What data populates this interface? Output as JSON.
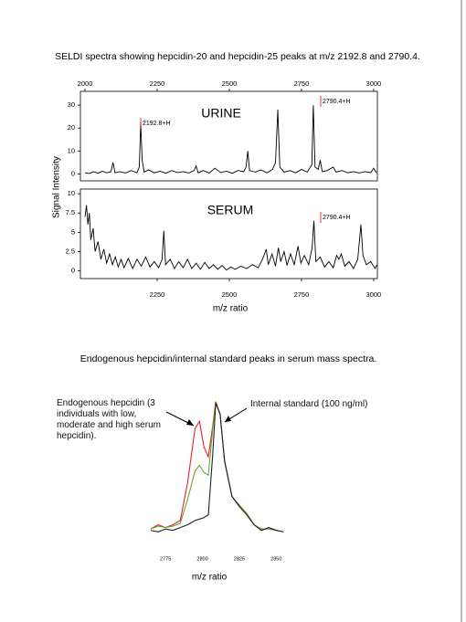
{
  "chart_data": [
    {
      "type": "line",
      "title": "SELDI spectra showing hepcidin-20 and hepcidin-25 peaks at m/z 2192.8 and 2790.4.",
      "ylabel": "Signal Intensity",
      "x": [
        2000,
        2015,
        2030,
        2045,
        2060,
        2075,
        2090,
        2097,
        2104,
        2120,
        2140,
        2160,
        2180,
        2188,
        2193,
        2198,
        2205,
        2220,
        2240,
        2260,
        2280,
        2300,
        2320,
        2340,
        2360,
        2378,
        2385,
        2392,
        2410,
        2430,
        2450,
        2470,
        2490,
        2510,
        2530,
        2550,
        2558,
        2564,
        2570,
        2590,
        2610,
        2630,
        2650,
        2660,
        2668,
        2675,
        2690,
        2710,
        2730,
        2750,
        2770,
        2786,
        2791,
        2797,
        2808,
        2815,
        2822,
        2840,
        2860,
        2870,
        2890,
        2910,
        2930,
        2950,
        2970,
        2990,
        3000,
        3010
      ],
      "series": [
        {
          "color": "#000000",
          "values": [
            0.5,
            0.2,
            1,
            0.3,
            1.2,
            0.5,
            1,
            5,
            0.5,
            1,
            0.4,
            1.5,
            0.5,
            3,
            22,
            6,
            0.8,
            1.8,
            0.5,
            1.2,
            0.3,
            1.5,
            0.6,
            1.0,
            0.4,
            1.5,
            3.5,
            0.5,
            1.5,
            0.4,
            2.5,
            0.6,
            1.2,
            0.3,
            1.5,
            1,
            3,
            10,
            1.5,
            0.8,
            1.8,
            0.5,
            2,
            5,
            28,
            3,
            0.8,
            1.5,
            0.5,
            2,
            0.8,
            4,
            30,
            3,
            2,
            6,
            1,
            1.5,
            3,
            0.8,
            1.5,
            0.5,
            1,
            0.4,
            1,
            0.6,
            2.5,
            0.5
          ]
        }
      ],
      "xlim": [
        1984,
        3013
      ],
      "xticks": [
        2000,
        2250,
        2500,
        2750,
        3000
      ],
      "ylim": [
        -3,
        36
      ],
      "yticks": [
        0,
        10,
        20,
        30
      ],
      "annotations": [
        {
          "text": "URINE"
        },
        {
          "text": "2192.8+H",
          "color": "#e00000"
        },
        {
          "text": "2790.4+H",
          "color": "#e00000"
        }
      ]
    },
    {
      "type": "line",
      "xlabel": "m/z ratio",
      "x": [
        2000,
        2005,
        2010,
        2015,
        2020,
        2028,
        2035,
        2045,
        2055,
        2065,
        2075,
        2085,
        2095,
        2105,
        2115,
        2125,
        2135,
        2150,
        2165,
        2180,
        2195,
        2210,
        2225,
        2240,
        2255,
        2267,
        2273,
        2279,
        2295,
        2310,
        2325,
        2340,
        2355,
        2370,
        2385,
        2400,
        2415,
        2430,
        2445,
        2460,
        2475,
        2490,
        2505,
        2520,
        2540,
        2560,
        2580,
        2600,
        2615,
        2628,
        2635,
        2648,
        2660,
        2670,
        2678,
        2690,
        2700,
        2712,
        2725,
        2738,
        2748,
        2760,
        2775,
        2787,
        2793,
        2800,
        2815,
        2830,
        2845,
        2860,
        2872,
        2880,
        2888,
        2900,
        2915,
        2930,
        2945,
        2956,
        2963,
        2975,
        2990,
        3005,
        3012
      ],
      "series": [
        {
          "color": "#000000",
          "values": [
            7,
            8.5,
            6,
            7.5,
            4,
            5.5,
            2.5,
            3.8,
            1.5,
            2.8,
            1,
            2.2,
            0.8,
            1.8,
            0.5,
            1.5,
            0.4,
            1.6,
            0.3,
            1.5,
            0.6,
            1.8,
            0.5,
            1.2,
            0.4,
            1.5,
            5.2,
            0.8,
            1.5,
            0.3,
            1.2,
            0.4,
            1.5,
            0.3,
            1.0,
            0.2,
            1.1,
            0.3,
            0.8,
            0.2,
            0.7,
            0.1,
            0.5,
            0.2,
            0.6,
            0.3,
            0.8,
            0.4,
            1.5,
            2.8,
            0.8,
            2.2,
            0.6,
            3,
            1.2,
            2.5,
            0.7,
            2.2,
            0.8,
            3.2,
            1,
            2,
            0.8,
            3,
            6.5,
            1.2,
            1.8,
            0.5,
            1.2,
            0.4,
            2,
            1.5,
            2.2,
            0.6,
            1.2,
            0.3,
            1.5,
            6,
            2,
            0.8,
            1.2,
            0.3,
            0.8
          ]
        }
      ],
      "xlim": [
        1984,
        3013
      ],
      "xticks": [
        2250,
        2500,
        2750,
        3000
      ],
      "ylim": [
        -1,
        10.6
      ],
      "yticks": [
        0,
        2.5,
        5,
        7.5,
        10
      ],
      "annotations": [
        {
          "text": "SERUM"
        },
        {
          "text": "2790.4+H",
          "color": "#e00000"
        }
      ]
    },
    {
      "type": "line",
      "title": "Endogenous hepcidin/internal standard peaks in serum mass spectra.",
      "xlabel": "m/z ratio",
      "x": [
        2765,
        2770,
        2775,
        2780,
        2785,
        2790,
        2795,
        2798,
        2801,
        2804,
        2807,
        2809,
        2812,
        2815,
        2820,
        2825,
        2830,
        2835,
        2840,
        2845,
        2850,
        2855
      ],
      "series": [
        {
          "color": "#e8202a",
          "values": [
            7,
            10,
            8,
            10,
            13,
            40,
            78,
            83,
            65,
            58,
            80,
            97,
            88,
            55,
            30,
            23,
            18,
            10,
            6,
            8,
            6,
            5
          ]
        },
        {
          "color": "#6aa23a",
          "values": [
            7,
            9,
            8,
            9,
            11,
            28,
            48,
            52,
            47,
            45,
            78,
            96,
            88,
            55,
            30,
            24,
            18,
            10,
            7,
            7,
            6,
            5
          ]
        },
        {
          "color": "#222222",
          "values": [
            6,
            5,
            7,
            6,
            8,
            10,
            13,
            14,
            15,
            17,
            60,
            96,
            88,
            55,
            30,
            23,
            17,
            10,
            6,
            8,
            6,
            5
          ]
        }
      ],
      "xlim": [
        2765,
        2856
      ],
      "xticks": [
        2775,
        2800,
        2825,
        2850
      ],
      "ylim": [
        0,
        100
      ],
      "annotations": [
        {
          "text": "Endogenous hepcidin (3 individuals with low, moderate and high serum hepcidin)."
        },
        {
          "text": "Internal standard (100 ng/ml)"
        }
      ]
    }
  ]
}
